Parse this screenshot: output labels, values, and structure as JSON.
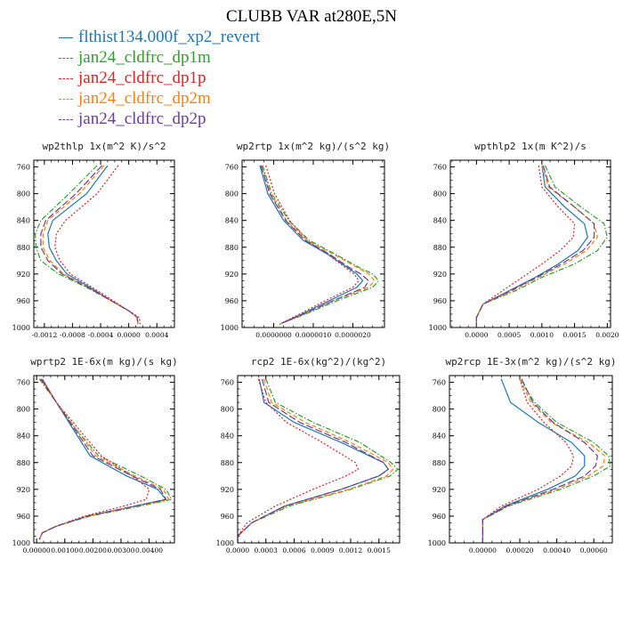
{
  "figure": {
    "title": "CLUBB VAR at280E,5N",
    "legend": [
      {
        "name": "flthist134.000f_xp2_revert",
        "color": "#1f77b4",
        "dash": "solid"
      },
      {
        "name": "jan24_cldfrc_dp1m",
        "color": "#2ca02c",
        "dash": "dashdot"
      },
      {
        "name": "jan24_cldfrc_dp1p",
        "color": "#d62728",
        "dash": "dot"
      },
      {
        "name": "jan24_cldfrc_dp2m",
        "color": "#ff7f0e",
        "dash": "dash"
      },
      {
        "name": "jan24_cldfrc_dp2p",
        "color": "#6a3d9a",
        "dash": "longdash"
      }
    ]
  },
  "chart_data": [
    {
      "type": "line",
      "title": "wp2thlp  1x(m^2 K)/s^2",
      "xlim": [
        -0.00135,
        0.00065
      ],
      "ylim": [
        750,
        1000
      ],
      "xticks": [
        -0.0012,
        -0.0008,
        -0.0004,
        0.0,
        0.0004
      ],
      "xtick_labels": [
        "-0.0012",
        "-0.0008",
        "-0.0004",
        "0.0000",
        "0.0004"
      ],
      "yticks": [
        760,
        800,
        840,
        880,
        920,
        960,
        1000
      ],
      "y": [
        758,
        800,
        840,
        860,
        880,
        900,
        920,
        940,
        960,
        975,
        985,
        995
      ],
      "series": [
        {
          "name": "flthist134.000f_xp2_revert",
          "x": [
            -0.0003,
            -0.0006,
            -0.00108,
            -0.00115,
            -0.00113,
            -0.00103,
            -0.00088,
            -0.00055,
            -0.00025,
            0.0,
            0.00012,
            0.00013
          ]
        },
        {
          "name": "jan24_cldfrc_dp1m",
          "x": [
            -0.00045,
            -0.00085,
            -0.00125,
            -0.00133,
            -0.00132,
            -0.00125,
            -0.001,
            -0.0006,
            -0.00025,
            0.0,
            0.00012,
            0.00013
          ]
        },
        {
          "name": "jan24_cldfrc_dp1p",
          "x": [
            -0.00015,
            -0.00045,
            -0.0009,
            -0.00103,
            -0.00105,
            -0.00098,
            -0.00083,
            -0.00052,
            -0.00022,
            0.0,
            0.00015,
            0.00016
          ]
        },
        {
          "name": "jan24_cldfrc_dp2m",
          "x": [
            -0.00035,
            -0.0007,
            -0.00115,
            -0.00122,
            -0.00122,
            -0.00112,
            -0.00093,
            -0.00058,
            -0.00025,
            0.0,
            0.00012,
            0.00013
          ]
        },
        {
          "name": "jan24_cldfrc_dp2p",
          "x": [
            -0.00038,
            -0.00075,
            -0.00118,
            -0.00125,
            -0.00125,
            -0.00115,
            -0.00095,
            -0.00058,
            -0.00025,
            0.0,
            0.00012,
            0.00013
          ]
        }
      ]
    },
    {
      "type": "line",
      "title": "wp2rtp  1x(m^2 kg)/(s^2 kg)",
      "xlim": [
        -8e-07,
        2.8e-06
      ],
      "ylim": [
        750,
        1000
      ],
      "xticks": [
        0.0,
        1e-06,
        2e-06
      ],
      "xtick_labels": [
        "0.0000000",
        "0.0000010",
        "0.0000020"
      ],
      "yticks": [
        760,
        800,
        840,
        880,
        920,
        960,
        1000
      ],
      "y": [
        758,
        800,
        840,
        870,
        890,
        910,
        920,
        930,
        940,
        960,
        980,
        995
      ],
      "series": [
        {
          "name": "flthist134.000f_xp2_revert",
          "x": [
            -3.5e-07,
            -1.5e-07,
            2.5e-07,
            7.5e-07,
            1.35e-06,
            1.85e-06,
            2.1e-06,
            2.25e-06,
            2.1e-06,
            1.4e-06,
            7e-07,
            1.5e-07
          ]
        },
        {
          "name": "jan24_cldfrc_dp1m",
          "x": [
            -2.8e-07,
            -5e-08,
            3.8e-07,
            9e-07,
            1.55e-06,
            2.15e-06,
            2.5e-06,
            2.65e-06,
            2.5e-06,
            1.6e-06,
            8e-07,
            1.5e-07
          ]
        },
        {
          "name": "jan24_cldfrc_dp1p",
          "x": [
            -2e-07,
            2e-08,
            4e-07,
            8.5e-07,
            1.35e-06,
            1.8e-06,
            2.03e-06,
            2.15e-06,
            2e-06,
            1.3e-06,
            6.5e-07,
            1.5e-07
          ]
        },
        {
          "name": "jan24_cldfrc_dp2m",
          "x": [
            -3e-07,
            -8e-08,
            3.2e-07,
            8.5e-07,
            1.5e-06,
            2.1e-06,
            2.4e-06,
            2.55e-06,
            2.4e-06,
            1.5e-06,
            7.5e-07,
            1.5e-07
          ]
        },
        {
          "name": "jan24_cldfrc_dp2p",
          "x": [
            -3.2e-07,
            -1e-07,
            3e-07,
            8e-07,
            1.4e-06,
            1.9e-06,
            2.2e-06,
            2.4e-06,
            2.3e-06,
            1.5e-06,
            7.5e-07,
            1.5e-07
          ]
        }
      ]
    },
    {
      "type": "line",
      "title": "wpthlp2  1x(m K^2)/s",
      "xlim": [
        -0.0004,
        0.00205
      ],
      "ylim": [
        750,
        1000
      ],
      "xticks": [
        0.0,
        0.0005,
        0.001,
        0.0015,
        0.002
      ],
      "xtick_labels": [
        "0.0000",
        "0.0005",
        "0.0010",
        "0.0015",
        "0.0020"
      ],
      "yticks": [
        760,
        800,
        840,
        880,
        920,
        960,
        1000
      ],
      "y": [
        758,
        790,
        820,
        845,
        865,
        885,
        905,
        925,
        945,
        965,
        985,
        1000
      ],
      "series": [
        {
          "name": "flthist134.000f_xp2_revert",
          "x": [
            0.001,
            0.00105,
            0.00135,
            0.00165,
            0.0017,
            0.00155,
            0.00125,
            0.0009,
            0.0005,
            0.0001,
            0.0,
            0.0
          ]
        },
        {
          "name": "jan24_cldfrc_dp1m",
          "x": [
            0.00105,
            0.0012,
            0.0016,
            0.00195,
            0.002,
            0.00185,
            0.0015,
            0.001,
            0.0006,
            0.0001,
            0.0,
            0.0
          ]
        },
        {
          "name": "jan24_cldfrc_dp1p",
          "x": [
            0.00095,
            0.001,
            0.00125,
            0.0015,
            0.00148,
            0.00128,
            0.001,
            0.0007,
            0.0004,
            0.0001,
            0.0,
            0.0
          ]
        },
        {
          "name": "jan24_cldfrc_dp2m",
          "x": [
            0.001,
            0.0011,
            0.0015,
            0.0018,
            0.00185,
            0.00168,
            0.00135,
            0.00095,
            0.00055,
            0.0001,
            0.0,
            0.0
          ]
        },
        {
          "name": "jan24_cldfrc_dp2p",
          "x": [
            0.00102,
            0.00112,
            0.0015,
            0.0018,
            0.0018,
            0.00163,
            0.0013,
            0.00092,
            0.00052,
            0.0001,
            0.0,
            0.0
          ]
        }
      ]
    },
    {
      "type": "line",
      "title": "wprtp2  1E-6x(m kg)/(s kg)",
      "xlim": [
        -0.0001,
        0.0049
      ],
      "ylim": [
        750,
        1000
      ],
      "xticks": [
        0.0,
        0.001,
        0.002,
        0.003,
        0.004
      ],
      "xtick_labels": [
        "0.00000",
        "0.00100",
        "0.00200",
        "0.00300",
        "0.00400"
      ],
      "yticks": [
        760,
        800,
        840,
        880,
        920,
        960,
        1000
      ],
      "y": [
        755,
        790,
        830,
        870,
        900,
        920,
        935,
        945,
        960,
        975,
        985,
        995
      ],
      "series": [
        {
          "name": "flthist134.000f_xp2_revert",
          "x": [
            0.0002,
            0.0007,
            0.0013,
            0.0019,
            0.0032,
            0.0043,
            0.0046,
            0.0035,
            0.0018,
            0.0007,
            0.0002,
            0.0001
          ]
        },
        {
          "name": "jan24_cldfrc_dp1m",
          "x": [
            0.0001,
            0.0007,
            0.0014,
            0.0022,
            0.0037,
            0.0046,
            0.0048,
            0.0037,
            0.0019,
            0.0007,
            0.0002,
            0.0001
          ]
        },
        {
          "name": "jan24_cldfrc_dp1p",
          "x": [
            0.0002,
            0.0007,
            0.0015,
            0.0023,
            0.0034,
            0.004,
            0.0039,
            0.0031,
            0.0017,
            0.0007,
            0.0002,
            0.0001
          ]
        },
        {
          "name": "jan24_cldfrc_dp2m",
          "x": [
            0.00015,
            0.0007,
            0.0014,
            0.0021,
            0.0035,
            0.0045,
            0.0047,
            0.0036,
            0.0018,
            0.0007,
            0.0002,
            0.0001
          ]
        },
        {
          "name": "jan24_cldfrc_dp2p",
          "x": [
            0.00015,
            0.0007,
            0.00135,
            0.002,
            0.0034,
            0.0044,
            0.0046,
            0.0035,
            0.0018,
            0.0007,
            0.0002,
            0.0001
          ]
        }
      ]
    },
    {
      "type": "line",
      "title": "rcp2  1E-6x(kg^2)/(kg^2)",
      "xlim": [
        0.0,
        0.00172
      ],
      "ylim": [
        750,
        1000
      ],
      "xticks": [
        0.0,
        0.0003,
        0.0006,
        0.0009,
        0.0012,
        0.0015
      ],
      "xtick_labels": [
        "0.0000",
        "0.0003",
        "0.0006",
        "0.0009",
        "0.0012",
        "0.0015"
      ],
      "yticks": [
        760,
        800,
        840,
        880,
        920,
        960,
        1000
      ],
      "y": [
        755,
        790,
        820,
        850,
        880,
        890,
        900,
        920,
        945,
        970,
        990,
        1000
      ],
      "series": [
        {
          "name": "flthist134.000f_xp2_revert",
          "x": [
            0.00023,
            0.00028,
            0.0006,
            0.0011,
            0.00155,
            0.0016,
            0.0015,
            0.0011,
            0.0005,
            0.00015,
            0.0,
            0.0
          ]
        },
        {
          "name": "jan24_cldfrc_dp1m",
          "x": [
            0.0003,
            0.0004,
            0.0008,
            0.0013,
            0.00163,
            0.0017,
            0.00162,
            0.0012,
            0.00055,
            0.00015,
            0.0,
            0.0
          ]
        },
        {
          "name": "jan24_cldfrc_dp1p",
          "x": [
            0.00022,
            0.0003,
            0.00052,
            0.0009,
            0.00125,
            0.00128,
            0.00115,
            0.0008,
            0.0004,
            0.0001,
            0.0,
            0.0
          ]
        },
        {
          "name": "jan24_cldfrc_dp2m",
          "x": [
            0.00028,
            0.00036,
            0.00072,
            0.0012,
            0.0016,
            0.00165,
            0.00158,
            0.00118,
            0.00052,
            0.00015,
            0.0,
            0.0
          ]
        },
        {
          "name": "jan24_cldfrc_dp2p",
          "x": [
            0.00026,
            0.00033,
            0.00066,
            0.00115,
            0.00155,
            0.0016,
            0.0015,
            0.0011,
            0.0005,
            0.00015,
            0.0,
            0.0
          ]
        }
      ]
    },
    {
      "type": "line",
      "title": "wp2rcp  1E-3x(m^2 kg)/(s^2 kg)",
      "xlim": [
        -0.00018,
        0.0007
      ],
      "ylim": [
        750,
        1000
      ],
      "xticks": [
        0.0,
        0.0002,
        0.0004,
        0.0006
      ],
      "xtick_labels": [
        "0.00000",
        "0.00020",
        "0.00040",
        "0.00060"
      ],
      "yticks": [
        760,
        800,
        840,
        880,
        920,
        960,
        1000
      ],
      "y": [
        755,
        790,
        820,
        850,
        870,
        885,
        900,
        920,
        945,
        965,
        985,
        1000
      ],
      "series": [
        {
          "name": "flthist134.000f_xp2_revert",
          "x": [
            0.0001,
            0.00015,
            0.0003,
            0.00048,
            0.00055,
            0.00055,
            0.0005,
            0.00035,
            0.00012,
            0.0,
            0.0,
            0.0
          ]
        },
        {
          "name": "jan24_cldfrc_dp1m",
          "x": [
            0.0002,
            0.00028,
            0.0004,
            0.0006,
            0.00068,
            0.00069,
            0.0006,
            0.00042,
            0.00014,
            0.0,
            0.0,
            0.0
          ]
        },
        {
          "name": "jan24_cldfrc_dp1p",
          "x": [
            0.0002,
            0.00024,
            0.00033,
            0.00045,
            0.00049,
            0.00048,
            0.00042,
            0.0003,
            0.0001,
            0.0,
            0.0,
            0.0
          ]
        },
        {
          "name": "jan24_cldfrc_dp2m",
          "x": [
            0.0002,
            0.00026,
            0.00037,
            0.00057,
            0.00066,
            0.00065,
            0.00057,
            0.0004,
            0.00013,
            0.0,
            0.0,
            0.0
          ]
        },
        {
          "name": "jan24_cldfrc_dp2p",
          "x": [
            0.00021,
            0.00027,
            0.00038,
            0.00055,
            0.00062,
            0.00061,
            0.00055,
            0.00038,
            0.00013,
            0.0,
            0.0,
            0.0
          ]
        }
      ]
    }
  ]
}
